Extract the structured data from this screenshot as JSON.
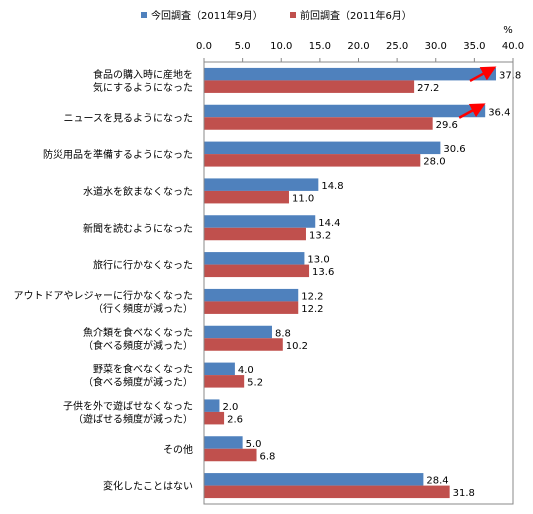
{
  "chart_data": {
    "type": "bar",
    "orientation": "horizontal",
    "unit_label": "%",
    "xlim": [
      0,
      40
    ],
    "ticks": [
      "0.0",
      "5.0",
      "10.0",
      "15.0",
      "20.0",
      "25.0",
      "30.0",
      "35.0",
      "40.0"
    ],
    "legend_position": "top",
    "grid": false,
    "categories": [
      [
        "食品の購入時に産地を",
        "気にするようになった"
      ],
      [
        "ニュースを見るようになった"
      ],
      [
        "防災用品を準備するようになった"
      ],
      [
        "水道水を飲まなくなった"
      ],
      [
        "新聞を読むようになった"
      ],
      [
        "旅行に行かなくなった"
      ],
      [
        "アウトドアやレジャーに行かなくなった",
        "（行く頻度が減った）"
      ],
      [
        "魚介類を食べなくなった",
        "（食べる頻度が減った）"
      ],
      [
        "野菜を食べなくなった",
        "（食べる頻度が減った）"
      ],
      [
        "子供を外で遊ばせなくなった",
        "（遊ばせる頻度が減った）"
      ],
      [
        "その他"
      ],
      [
        "変化したことはない"
      ]
    ],
    "series": [
      {
        "name": "今回調査（2011年9月）",
        "color": "#4f81bd",
        "values": [
          37.8,
          36.4,
          30.6,
          14.8,
          14.4,
          13.0,
          12.2,
          8.8,
          4.0,
          2.0,
          5.0,
          28.4
        ],
        "labels": [
          "37.8",
          "36.4",
          "30.6",
          "14.8",
          "14.4",
          "13.0",
          "12.2",
          "8.8",
          "4.0",
          "2.0",
          "5.0",
          "28.4"
        ]
      },
      {
        "name": "前回調査（2011年6月）",
        "color": "#c0504d",
        "values": [
          27.2,
          29.6,
          28.0,
          11.0,
          13.2,
          13.6,
          12.2,
          10.2,
          5.2,
          2.6,
          6.8,
          31.8
        ],
        "labels": [
          "27.2",
          "29.6",
          "28.0",
          "11.0",
          "13.2",
          "13.6",
          "12.2",
          "10.2",
          "5.2",
          "2.6",
          "6.8",
          "31.8"
        ]
      }
    ],
    "annotations": [
      {
        "type": "arrow",
        "category_index": 0,
        "series_index": 0,
        "color": "#ff0000"
      },
      {
        "type": "arrow",
        "category_index": 1,
        "series_index": 0,
        "color": "#ff0000"
      }
    ]
  }
}
